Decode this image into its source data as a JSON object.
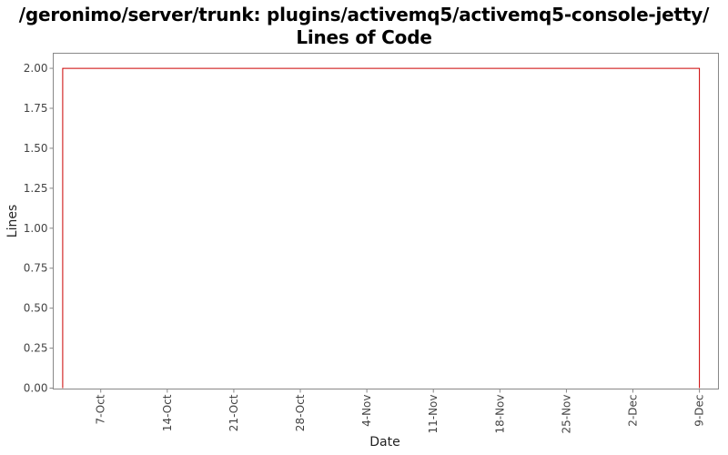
{
  "chart_data": {
    "type": "line",
    "title": "/geronimo/server/trunk: plugins/activemq5/activemq5-console-jetty/ Lines of Code",
    "xlabel": "Date",
    "ylabel": "Lines",
    "x_ticks": [
      "7-Oct",
      "14-Oct",
      "21-Oct",
      "28-Oct",
      "4-Nov",
      "11-Nov",
      "18-Nov",
      "25-Nov",
      "2-Dec",
      "9-Dec"
    ],
    "x_range": [
      "2 Oct",
      "11 Dec"
    ],
    "ylim": [
      0,
      2.1
    ],
    "y_ticks": [
      "0.00",
      "0.25",
      "0.50",
      "0.75",
      "1.00",
      "1.25",
      "1.50",
      "1.75",
      "2.00"
    ],
    "grid": false,
    "legend": "none",
    "series_color": "#cc0000",
    "series": [
      {
        "x": [
          "3 Oct",
          "3 Oct",
          "9 Dec",
          "9 Dec"
        ],
        "values": [
          0,
          2,
          2,
          0
        ]
      }
    ]
  }
}
